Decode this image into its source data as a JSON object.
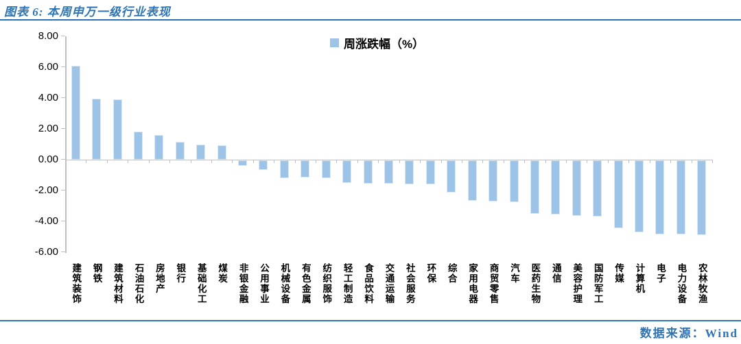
{
  "header": {
    "title": "图表 6: 本周申万一级行业表现"
  },
  "footer": {
    "source": "数据来源：Wind"
  },
  "colors": {
    "bar": "#9DC3E6",
    "accent_blue": "#2E74B5",
    "axis": "#BFBFBF",
    "text": "#000000"
  },
  "chart_data": {
    "type": "bar",
    "title": "图表 6: 本周申万一级行业表现",
    "legend": "周涨跌幅（%）",
    "legend_position": "top-center",
    "grid": false,
    "xlabel": "",
    "ylabel": "",
    "ylim": [
      -6,
      8
    ],
    "yticks": [
      8,
      6,
      4,
      2,
      0,
      -2,
      -4,
      -6
    ],
    "ytick_labels": [
      "8.00",
      "6.00",
      "4.00",
      "2.00",
      "0.00",
      "-2.00",
      "-4.00",
      "-6.00"
    ],
    "categories": [
      "建筑装饰",
      "钢铁",
      "建筑材料",
      "石油石化",
      "房地产",
      "银行",
      "基础化工",
      "煤炭",
      "非银金融",
      "公用事业",
      "机械设备",
      "有色金属",
      "纺织服饰",
      "轻工制造",
      "食品饮料",
      "交通运输",
      "社会服务",
      "环保",
      "综合",
      "家用电器",
      "商贸零售",
      "汽车",
      "医药生物",
      "通信",
      "美容护理",
      "国防军工",
      "传媒",
      "计算机",
      "电子",
      "电力设备",
      "农林牧渔"
    ],
    "values": [
      6.05,
      3.95,
      3.9,
      1.8,
      1.6,
      1.15,
      0.95,
      0.9,
      -0.35,
      -0.6,
      -1.15,
      -1.1,
      -1.15,
      -1.45,
      -1.5,
      -1.5,
      -1.55,
      -1.55,
      -2.1,
      -2.6,
      -2.65,
      -2.7,
      -3.45,
      -3.5,
      -3.6,
      -3.65,
      -4.4,
      -4.65,
      -4.8,
      -4.8,
      -4.85
    ]
  }
}
